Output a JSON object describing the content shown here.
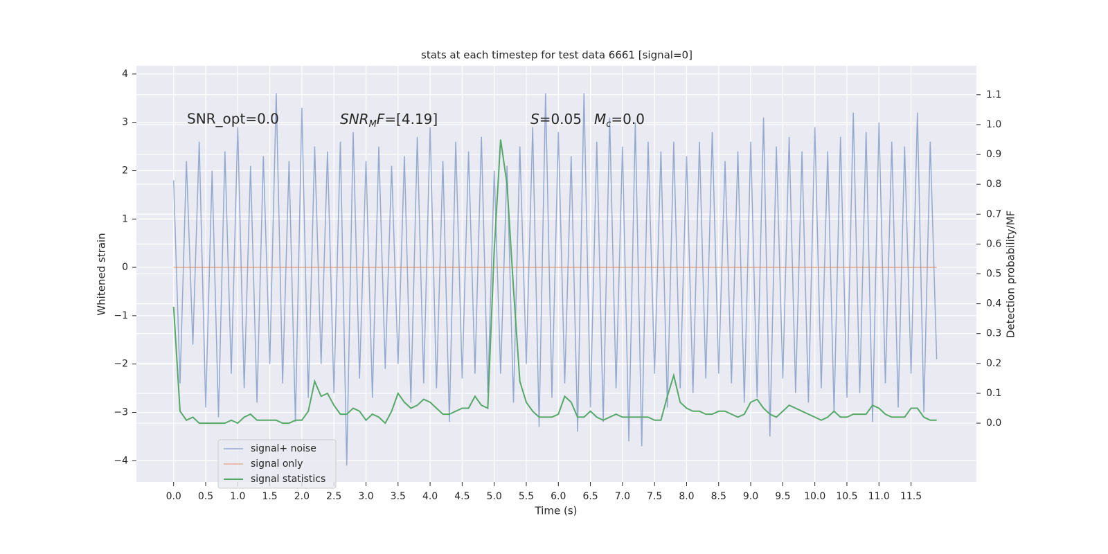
{
  "chart_data": {
    "type": "line",
    "title": "stats at each timestep for test data 6661 [signal=0]",
    "xlabel": "Time (s)",
    "ylabel": "Whitened strain",
    "y2label": "Detection probability/MF",
    "annotations": [
      {
        "text": "SNR_opt=0.0"
      },
      {
        "italic": "SNR",
        "sub": "M",
        "italic2": "F",
        "tail": "=[4.19]"
      },
      {
        "italic": "S",
        "tail": "=0.05"
      },
      {
        "italic": "M",
        "sub": "c",
        "tail": "=0.0"
      }
    ],
    "grid": true,
    "legend": "lower left",
    "xlim": [
      -0.58,
      12.52
    ],
    "ylim": [
      -4.44,
      4.17
    ],
    "y2lim": [
      -0.197,
      1.197
    ],
    "xticks": [
      {
        "value": 0,
        "label": "0.0"
      },
      {
        "value": 0.5,
        "label": "0.5"
      },
      {
        "value": 1,
        "label": "1.0"
      },
      {
        "value": 1.5,
        "label": "1.5"
      },
      {
        "value": 2,
        "label": "2.0"
      },
      {
        "value": 2.5,
        "label": "2.5"
      },
      {
        "value": 3,
        "label": "3.0"
      },
      {
        "value": 3.5,
        "label": "3.5"
      },
      {
        "value": 4,
        "label": "4.0"
      },
      {
        "value": 4.5,
        "label": "4.5"
      },
      {
        "value": 5,
        "label": "5.0"
      },
      {
        "value": 5.5,
        "label": "5.5"
      },
      {
        "value": 6,
        "label": "6.0"
      },
      {
        "value": 6.5,
        "label": "6.5"
      },
      {
        "value": 7,
        "label": "7.0"
      },
      {
        "value": 7.5,
        "label": "7.5"
      },
      {
        "value": 8,
        "label": "8.0"
      },
      {
        "value": 8.5,
        "label": "8.5"
      },
      {
        "value": 9,
        "label": "9.0"
      },
      {
        "value": 9.5,
        "label": "9.5"
      },
      {
        "value": 10,
        "label": "10.0"
      },
      {
        "value": 10.5,
        "label": "10.5"
      },
      {
        "value": 11,
        "label": "11.0"
      },
      {
        "value": 11.5,
        "label": "11.5"
      }
    ],
    "yticks": [
      {
        "value": -4,
        "label": "−4"
      },
      {
        "value": -3,
        "label": "−3"
      },
      {
        "value": -2,
        "label": "−2"
      },
      {
        "value": -1,
        "label": "−1"
      },
      0,
      1,
      2,
      3,
      4
    ],
    "y2ticks": [
      {
        "value": 0,
        "label": "0.0"
      },
      {
        "value": 0.1,
        "label": "0.1"
      },
      {
        "value": 0.2,
        "label": "0.2"
      },
      {
        "value": 0.3,
        "label": "0.3"
      },
      {
        "value": 0.4,
        "label": "0.4"
      },
      {
        "value": 0.5,
        "label": "0.5"
      },
      {
        "value": 0.6,
        "label": "0.6"
      },
      {
        "value": 0.7,
        "label": "0.7"
      },
      {
        "value": 0.8,
        "label": "0.8"
      },
      {
        "value": 0.9,
        "label": "0.9"
      },
      {
        "value": 1,
        "label": "1.0"
      },
      {
        "value": 1.1,
        "label": "1.1"
      }
    ],
    "x": [
      0,
      0.1,
      0.2,
      0.3,
      0.4,
      0.5,
      0.6,
      0.7,
      0.8,
      0.9,
      1,
      1.1,
      1.2,
      1.3,
      1.4,
      1.5,
      1.6,
      1.7,
      1.8,
      1.9,
      2,
      2.1,
      2.2,
      2.3,
      2.4,
      2.5,
      2.6,
      2.7,
      2.8,
      2.9,
      3,
      3.1,
      3.2,
      3.3,
      3.4,
      3.5,
      3.6,
      3.7,
      3.8,
      3.9,
      4,
      4.1,
      4.2,
      4.3,
      4.4,
      4.5,
      4.6,
      4.7,
      4.8,
      4.9,
      5,
      5.1,
      5.2,
      5.3,
      5.4,
      5.5,
      5.6,
      5.7,
      5.8,
      5.9,
      6,
      6.1,
      6.2,
      6.3,
      6.4,
      6.5,
      6.6,
      6.7,
      6.8,
      6.9,
      7,
      7.1,
      7.2,
      7.3,
      7.4,
      7.5,
      7.6,
      7.7,
      7.8,
      7.9,
      8,
      8.1,
      8.2,
      8.3,
      8.4,
      8.5,
      8.6,
      8.7,
      8.8,
      8.9,
      9,
      9.1,
      9.2,
      9.3,
      9.4,
      9.5,
      9.6,
      9.7,
      9.8,
      9.9,
      10,
      10.1,
      10.2,
      10.3,
      10.4,
      10.5,
      10.6,
      10.7,
      10.8,
      10.9,
      11,
      11.1,
      11.2,
      11.3,
      11.4,
      11.5,
      11.6,
      11.7,
      11.8,
      11.9
    ],
    "series": [
      {
        "name": "signal+ noise",
        "color": "#4c72b0",
        "values": [
          1.8,
          -2.4,
          2.2,
          -1.6,
          2.6,
          -2.9,
          2.0,
          -3.1,
          2.4,
          -2.2,
          2.9,
          -2.5,
          2.1,
          -2.8,
          2.3,
          -2.0,
          3.6,
          -2.4,
          2.2,
          -3.2,
          3.3,
          -2.7,
          2.5,
          -2.0,
          2.4,
          -2.6,
          2.6,
          -4.1,
          2.8,
          -2.3,
          2.2,
          -2.7,
          2.5,
          -2.1,
          2.1,
          -2.0,
          2.3,
          -2.8,
          2.7,
          -2.4,
          2.9,
          -2.5,
          2.2,
          -3.2,
          2.6,
          -2.3,
          2.4,
          -2.2,
          2.7,
          -2.6,
          2.0,
          -2.2,
          2.1,
          -2.8,
          2.5,
          -2.0,
          2.9,
          -3.3,
          3.6,
          -2.7,
          2.8,
          -2.4,
          2.3,
          -3.4,
          3.6,
          -2.9,
          2.6,
          -3.2,
          3.1,
          -2.5,
          2.5,
          -3.6,
          3.0,
          -3.7,
          2.6,
          -2.2,
          2.4,
          -2.9,
          2.6,
          -2.5,
          2.3,
          -2.6,
          2.6,
          -2.3,
          2.8,
          -2.2,
          2.2,
          -2.4,
          2.4,
          -2.8,
          2.6,
          -2.7,
          3.1,
          -3.5,
          2.5,
          -2.3,
          2.7,
          -2.6,
          2.4,
          -2.8,
          2.9,
          -2.5,
          2.4,
          -3.0,
          2.7,
          -2.7,
          3.2,
          -2.6,
          2.8,
          -3.2,
          3.0,
          -2.4,
          2.6,
          -2.9,
          2.5,
          -2.2,
          3.2,
          -3.0,
          2.6,
          -1.9
        ]
      },
      {
        "name": "signal only",
        "color": "#dd8452",
        "values": [
          0,
          0,
          0,
          0,
          0,
          0,
          0,
          0,
          0,
          0,
          0,
          0,
          0,
          0,
          0,
          0,
          0,
          0,
          0,
          0,
          0,
          0,
          0,
          0,
          0,
          0,
          0,
          0,
          0,
          0,
          0,
          0,
          0,
          0,
          0,
          0,
          0,
          0,
          0,
          0,
          0,
          0,
          0,
          0,
          0,
          0,
          0,
          0,
          0,
          0,
          0,
          0,
          0,
          0,
          0,
          0,
          0,
          0,
          0,
          0,
          0,
          0,
          0,
          0,
          0,
          0,
          0,
          0,
          0,
          0,
          0,
          0,
          0,
          0,
          0,
          0,
          0,
          0,
          0,
          0,
          0,
          0,
          0,
          0,
          0,
          0,
          0,
          0,
          0,
          0,
          0,
          0,
          0,
          0,
          0,
          0,
          0,
          0,
          0,
          0,
          0,
          0,
          0,
          0,
          0,
          0,
          0,
          0,
          0,
          0,
          0,
          0,
          0,
          0,
          0,
          0,
          0,
          0,
          0,
          0
        ]
      },
      {
        "name": "signal statistics",
        "color": "#55a868",
        "axis": "y2",
        "values": [
          0.39,
          0.04,
          0.01,
          0.02,
          0.0,
          0.0,
          0.0,
          0.0,
          0.0,
          0.01,
          0.0,
          0.02,
          0.03,
          0.01,
          0.01,
          0.01,
          0.01,
          0.0,
          0.0,
          0.01,
          0.01,
          0.04,
          0.14,
          0.09,
          0.1,
          0.06,
          0.03,
          0.03,
          0.05,
          0.04,
          0.01,
          0.03,
          0.02,
          0.0,
          0.04,
          0.1,
          0.07,
          0.05,
          0.06,
          0.08,
          0.07,
          0.05,
          0.03,
          0.03,
          0.04,
          0.05,
          0.05,
          0.09,
          0.06,
          0.05,
          0.58,
          0.95,
          0.8,
          0.45,
          0.14,
          0.07,
          0.04,
          0.02,
          0.02,
          0.02,
          0.03,
          0.09,
          0.07,
          0.02,
          0.02,
          0.04,
          0.02,
          0.01,
          0.02,
          0.03,
          0.02,
          0.02,
          0.02,
          0.02,
          0.02,
          0.01,
          0.01,
          0.09,
          0.16,
          0.07,
          0.05,
          0.04,
          0.04,
          0.03,
          0.03,
          0.04,
          0.04,
          0.03,
          0.02,
          0.03,
          0.07,
          0.08,
          0.05,
          0.03,
          0.02,
          0.04,
          0.06,
          0.05,
          0.04,
          0.03,
          0.02,
          0.01,
          0.02,
          0.04,
          0.02,
          0.02,
          0.03,
          0.03,
          0.03,
          0.06,
          0.05,
          0.03,
          0.02,
          0.02,
          0.02,
          0.05,
          0.05,
          0.02,
          0.01,
          0.01
        ]
      }
    ]
  }
}
